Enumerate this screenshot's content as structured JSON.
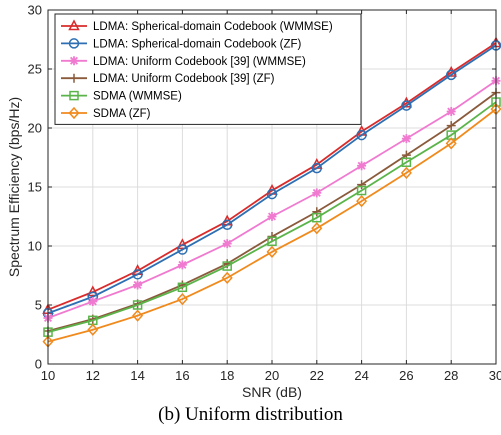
{
  "caption": "(b) Uniform distribution",
  "chart_data": {
    "type": "line",
    "xlabel": "SNR (dB)",
    "ylabel": "Spectrum Efficiency (bps/Hz)",
    "xlim": [
      10,
      30
    ],
    "ylim": [
      0,
      30
    ],
    "x_ticks": [
      10,
      12,
      14,
      16,
      18,
      20,
      22,
      24,
      26,
      28,
      30
    ],
    "y_ticks": [
      0,
      5,
      10,
      15,
      20,
      25,
      30
    ],
    "grid": true,
    "legend_position": "top-left",
    "x": [
      10,
      12,
      14,
      16,
      18,
      20,
      22,
      24,
      26,
      28,
      30
    ],
    "series": [
      {
        "name": "LDMA: Spherical-domain Codebook (WMMSE)",
        "color": "#d92b2b",
        "marker": "triangle",
        "values": [
          4.6,
          6.1,
          7.9,
          10.1,
          12.1,
          14.7,
          16.9,
          19.7,
          22.1,
          24.7,
          27.2
        ]
      },
      {
        "name": "LDMA: Spherical-domain Codebook (ZF)",
        "color": "#2e6fb3",
        "marker": "circle",
        "values": [
          4.3,
          5.7,
          7.6,
          9.7,
          11.8,
          14.4,
          16.6,
          19.4,
          21.9,
          24.5,
          27.0
        ]
      },
      {
        "name": "LDMA: Uniform Codebook [39] (WMMSE)",
        "color": "#f07ad0",
        "marker": "asterisk",
        "values": [
          3.9,
          5.3,
          6.7,
          8.4,
          10.2,
          12.5,
          14.5,
          16.8,
          19.1,
          21.4,
          24.0
        ]
      },
      {
        "name": "LDMA: Uniform Codebook [39] (ZF)",
        "color": "#8a5a3b",
        "marker": "plus",
        "values": [
          2.8,
          3.8,
          5.1,
          6.7,
          8.5,
          10.8,
          12.9,
          15.2,
          17.7,
          20.2,
          23.0
        ]
      },
      {
        "name": "SDMA (WMMSE)",
        "color": "#5bb44a",
        "marker": "square",
        "values": [
          2.7,
          3.7,
          5.0,
          6.5,
          8.3,
          10.4,
          12.4,
          14.7,
          17.1,
          19.4,
          22.2
        ]
      },
      {
        "name": "SDMA (ZF)",
        "color": "#f08a1c",
        "marker": "diamond",
        "values": [
          1.9,
          2.9,
          4.1,
          5.5,
          7.3,
          9.5,
          11.5,
          13.8,
          16.2,
          18.7,
          21.6
        ]
      }
    ]
  }
}
